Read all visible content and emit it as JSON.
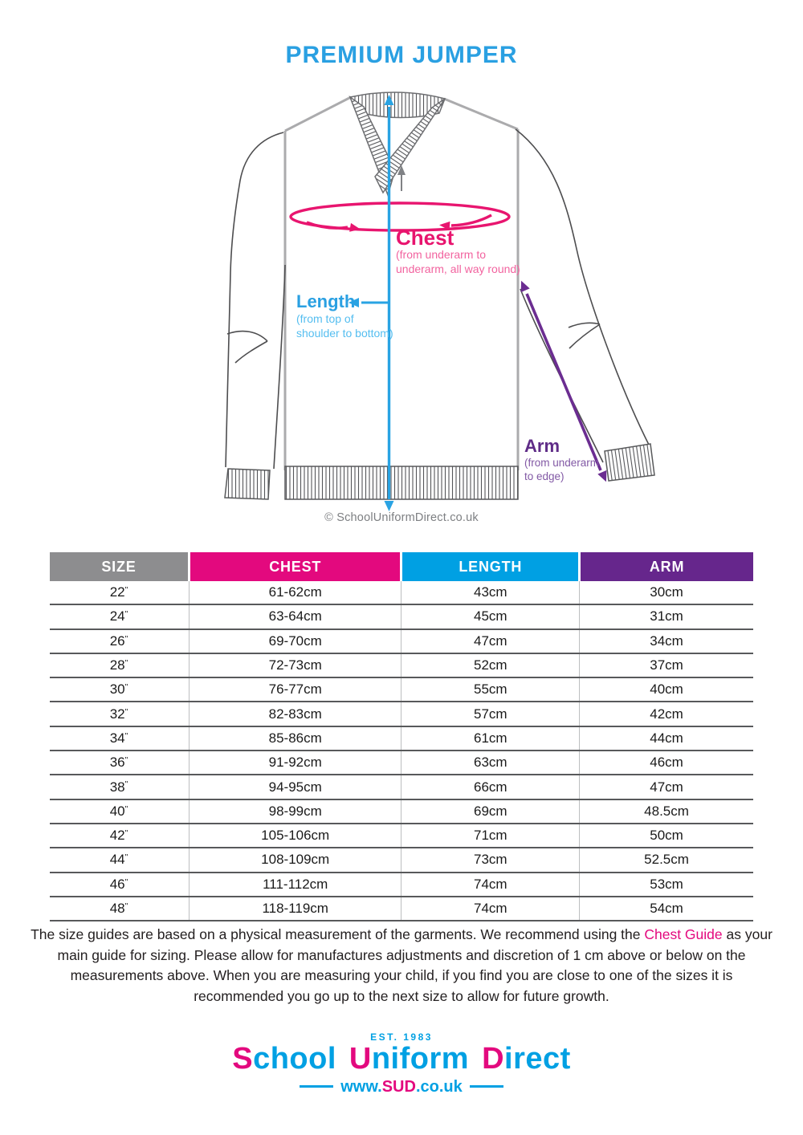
{
  "title": "PREMIUM JUMPER",
  "diagram": {
    "chest": {
      "label": "Chest",
      "desc1": "(from underarm to",
      "desc2": "underarm, all way round)"
    },
    "length": {
      "label": "Length",
      "desc1": "(from top of",
      "desc2": "shoulder to bottom)"
    },
    "arm": {
      "label": "Arm",
      "desc1": "(from underarm",
      "desc2": "to edge)"
    },
    "copyright": "© SchoolUniformDirect.co.uk"
  },
  "table": {
    "headers": [
      "SIZE",
      "CHEST",
      "LENGTH",
      "ARM"
    ],
    "rows": [
      [
        "22\"",
        "61-62cm",
        "43cm",
        "30cm"
      ],
      [
        "24\"",
        "63-64cm",
        "45cm",
        "31cm"
      ],
      [
        "26\"",
        "69-70cm",
        "47cm",
        "34cm"
      ],
      [
        "28\"",
        "72-73cm",
        "52cm",
        "37cm"
      ],
      [
        "30\"",
        "76-77cm",
        "55cm",
        "40cm"
      ],
      [
        "32\"",
        "82-83cm",
        "57cm",
        "42cm"
      ],
      [
        "34\"",
        "85-86cm",
        "61cm",
        "44cm"
      ],
      [
        "36\"",
        "91-92cm",
        "63cm",
        "46cm"
      ],
      [
        "38\"",
        "94-95cm",
        "66cm",
        "47cm"
      ],
      [
        "40\"",
        "98-99cm",
        "69cm",
        "48.5cm"
      ],
      [
        "42\"",
        "105-106cm",
        "71cm",
        "50cm"
      ],
      [
        "44\"",
        "108-109cm",
        "73cm",
        "52.5cm"
      ],
      [
        "46\"",
        "111-112cm",
        "74cm",
        "53cm"
      ],
      [
        "48\"",
        "118-119cm",
        "74cm",
        "54cm"
      ]
    ]
  },
  "note": {
    "part1": "The size guides are based on a physical measurement of the garments. We recommend using the ",
    "highlight": "Chest Guide",
    "part2": " as your main guide for sizing. Please allow for manufactures adjustments and discretion of 1 cm above or below on the measurements above. When you are measuring your child, if you find you are close to one of the sizes it is recommended you go up to the next size to allow for future growth."
  },
  "logo": {
    "est": "EST. 1983",
    "w1_initial": "S",
    "w1_rest": "chool",
    "w2_initial": "U",
    "w2_rest": "niform",
    "w3_initial": "D",
    "w3_rest": "irect",
    "url_pre": "www.",
    "url_brand": "SUD",
    "url_suffix": ".co.uk"
  },
  "colors": {
    "blue": "#00a0e3",
    "pink": "#e3097e",
    "purple": "#66268c",
    "gray": "#8d8d8f",
    "title_blue": "#2aa0e2"
  }
}
